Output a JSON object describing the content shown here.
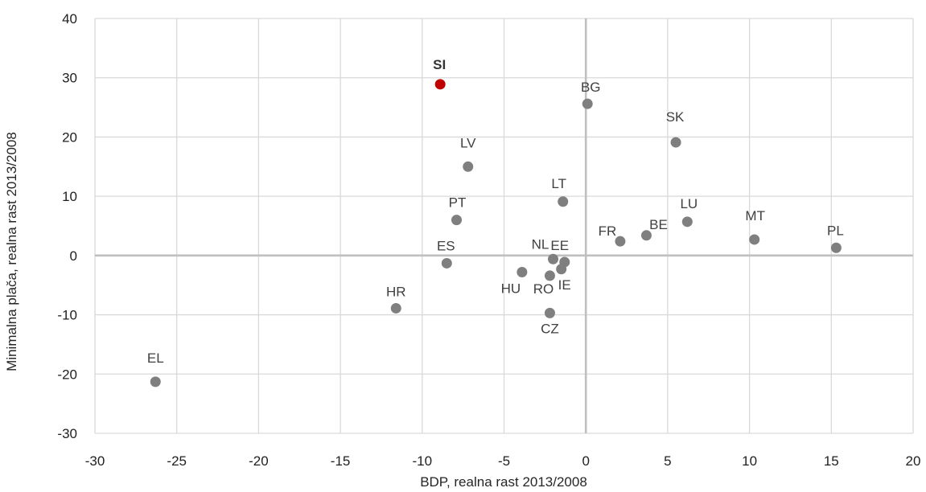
{
  "chart_data": {
    "type": "scatter",
    "xlabel": "BDP, realna rast 2013/2008",
    "ylabel": "Minimalna plača, realna rast 2013/2008",
    "xlim": [
      -30,
      20
    ],
    "ylim": [
      -30,
      40
    ],
    "x_ticks": [
      -30,
      -25,
      -20,
      -15,
      -10,
      -5,
      0,
      5,
      10,
      15,
      20
    ],
    "y_ticks": [
      -30,
      -20,
      -10,
      0,
      10,
      20,
      30,
      40
    ],
    "grid": true,
    "colors": {
      "point": "#7f7f7f",
      "highlight": "#c00000",
      "grid": "#d9d9d9",
      "zero_axis": "#bfbfbf"
    },
    "points": [
      {
        "label": "SI",
        "x": -8.9,
        "y": 28.9,
        "highlight": true
      },
      {
        "label": "BG",
        "x": 0.1,
        "y": 25.6
      },
      {
        "label": "SK",
        "x": 5.5,
        "y": 19.1
      },
      {
        "label": "LV",
        "x": -7.2,
        "y": 15.0
      },
      {
        "label": "LT",
        "x": -1.4,
        "y": 9.1
      },
      {
        "label": "PT",
        "x": -7.9,
        "y": 6.0
      },
      {
        "label": "LU",
        "x": 6.2,
        "y": 5.7
      },
      {
        "label": "MT",
        "x": 10.3,
        "y": 2.7
      },
      {
        "label": "PL",
        "x": 15.3,
        "y": 1.3
      },
      {
        "label": "FR",
        "x": 2.1,
        "y": 2.4
      },
      {
        "label": "BE",
        "x": 3.7,
        "y": 3.4
      },
      {
        "label": "ES",
        "x": -8.5,
        "y": -1.3
      },
      {
        "label": "NL",
        "x": -2.0,
        "y": -0.6
      },
      {
        "label": "EE",
        "x": -1.3,
        "y": -1.1
      },
      {
        "label": "IE",
        "x": -1.5,
        "y": -2.3
      },
      {
        "label": "HU",
        "x": -3.9,
        "y": -2.8
      },
      {
        "label": "RO",
        "x": -2.2,
        "y": -3.4
      },
      {
        "label": "CZ",
        "x": -2.2,
        "y": -9.7
      },
      {
        "label": "HR",
        "x": -11.6,
        "y": -8.9
      },
      {
        "label": "EL",
        "x": -26.3,
        "y": -21.3
      }
    ]
  }
}
